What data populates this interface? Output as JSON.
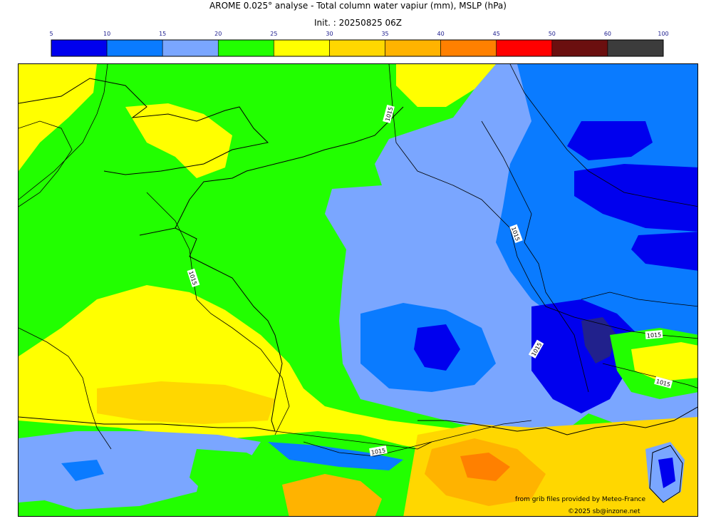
{
  "header": {
    "title": "AROME 0.025° analyse - Total column water vapiur (mm), MSLP (hPa)",
    "init": "Init. : 20250825 06Z"
  },
  "legend": {
    "ticks": [
      "5",
      "10",
      "15",
      "20",
      "25",
      "30",
      "35",
      "40",
      "45",
      "50",
      "60",
      "100"
    ],
    "colors": [
      "#0000ee",
      "#0a7bff",
      "#7aa6ff",
      "#22ff00",
      "#ffff00",
      "#ffd700",
      "#ffb300",
      "#ff8000",
      "#ff0000",
      "#6b0f0f",
      "#3c3c3c"
    ]
  },
  "map": {
    "isobar_label": "1015",
    "isobar_label_count": 7
  },
  "credits": {
    "source": "from grib files provided by Meteo-France",
    "copyright": "©2025 sb@inzone.net"
  }
}
